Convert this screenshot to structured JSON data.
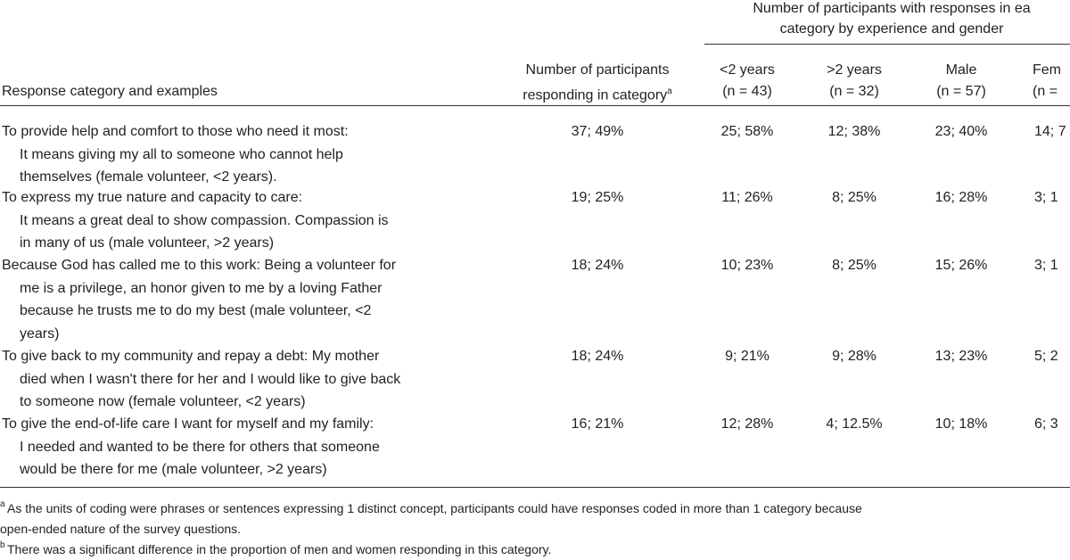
{
  "header": {
    "group": [
      "Number of participants with responses in ea",
      "category by experience and gender"
    ],
    "columns": [
      {
        "lines": [
          "Response category and examples"
        ]
      },
      {
        "lines": [
          "Number of participants",
          "responding in category"
        ],
        "sup": "a"
      },
      {
        "lines": [
          "<2 years",
          "(n = 43)"
        ]
      },
      {
        "lines": [
          ">2 years",
          "(n = 32)"
        ]
      },
      {
        "lines": [
          "Male",
          "(n = 57)"
        ]
      },
      {
        "lines": [
          "Fem",
          "(n ="
        ]
      }
    ]
  },
  "rows": [
    {
      "lines": [
        "To provide help and comfort to those who need it most:",
        "It means giving my all to someone who cannot help",
        "themselves (female volunteer, <2 years)."
      ],
      "cells": [
        "37; 49%",
        "25; 58%",
        "12; 38%",
        "23; 40%",
        "14; 7"
      ]
    },
    {
      "lines": [
        "To express my true nature and capacity to care:",
        "It means a great deal to show compassion. Compassion is",
        "in many of us (male volunteer, >2 years)"
      ],
      "cells": [
        "19; 25%",
        "11; 26%",
        "8; 25%",
        "16; 28%",
        "3; 1"
      ]
    },
    {
      "lines": [
        "Because God has called me to this work: Being a volunteer for",
        "me is a privilege, an honor given to me by a loving Father",
        "because he trusts me to do my best (male volunteer, <2",
        "years)"
      ],
      "cells": [
        "18; 24%",
        "10; 23%",
        "8; 25%",
        "15; 26%",
        "3; 1"
      ]
    },
    {
      "lines": [
        "To give back to my community and repay a debt: My mother",
        "died when I wasn't there for her and I would like to give back",
        "to someone now (female volunteer, <2 years)"
      ],
      "cells": [
        "18; 24%",
        "9; 21%",
        "9; 28%",
        "13; 23%",
        "5; 2"
      ]
    },
    {
      "lines": [
        "To give the end-of-life care I want for myself and my family:",
        "I needed and wanted to be there for others that someone",
        "would be there for me (male volunteer, >2 years)"
      ],
      "cells": [
        "16; 21%",
        "12; 28%",
        "4; 12.5%",
        "10; 18%",
        "6; 3"
      ]
    }
  ],
  "footnotes": [
    {
      "marker": "a",
      "lines": [
        "As the units of coding were phrases or sentences expressing 1 distinct concept, participants could have responses coded in more than 1 category because",
        "open-ended nature of the survey questions."
      ]
    },
    {
      "marker": "b",
      "lines": [
        "There was a significant difference in the proportion of men and women responding in this category."
      ]
    }
  ]
}
